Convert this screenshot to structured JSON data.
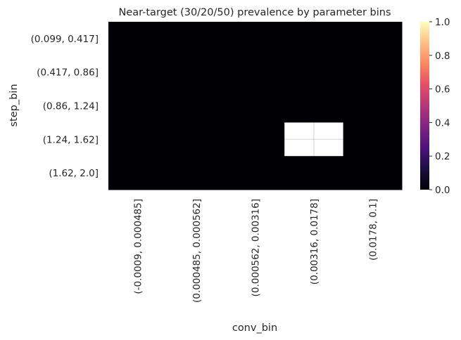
{
  "chart_data": {
    "type": "heatmap",
    "title": "Near-target (30/20/50) prevalence by parameter bins",
    "xlabel": "conv_bin",
    "ylabel": "step_bin",
    "x_categories": [
      "(-0.0009, 0.000485]",
      "(0.000485, 0.000562]",
      "(0.000562, 0.00316]",
      "(0.00316, 0.0178]",
      "(0.0178, 0.1]"
    ],
    "y_categories": [
      "(0.099, 0.417]",
      "(0.417, 0.86]",
      "(0.86, 1.24]",
      "(1.24, 1.62]",
      "(1.62, 2.0]"
    ],
    "values": [
      [
        0,
        0,
        0,
        0,
        0
      ],
      [
        0,
        0,
        0,
        0,
        0
      ],
      [
        0,
        0,
        0,
        0,
        0
      ],
      [
        0,
        0,
        0,
        1,
        0
      ],
      [
        0,
        0,
        0,
        0,
        0
      ]
    ],
    "colormap": "magma",
    "vmin": 0,
    "vmax": 1,
    "colorbar_ticks": [
      "0.0",
      "0.2",
      "0.4",
      "0.6",
      "0.8",
      "1.0"
    ],
    "grid": true
  }
}
